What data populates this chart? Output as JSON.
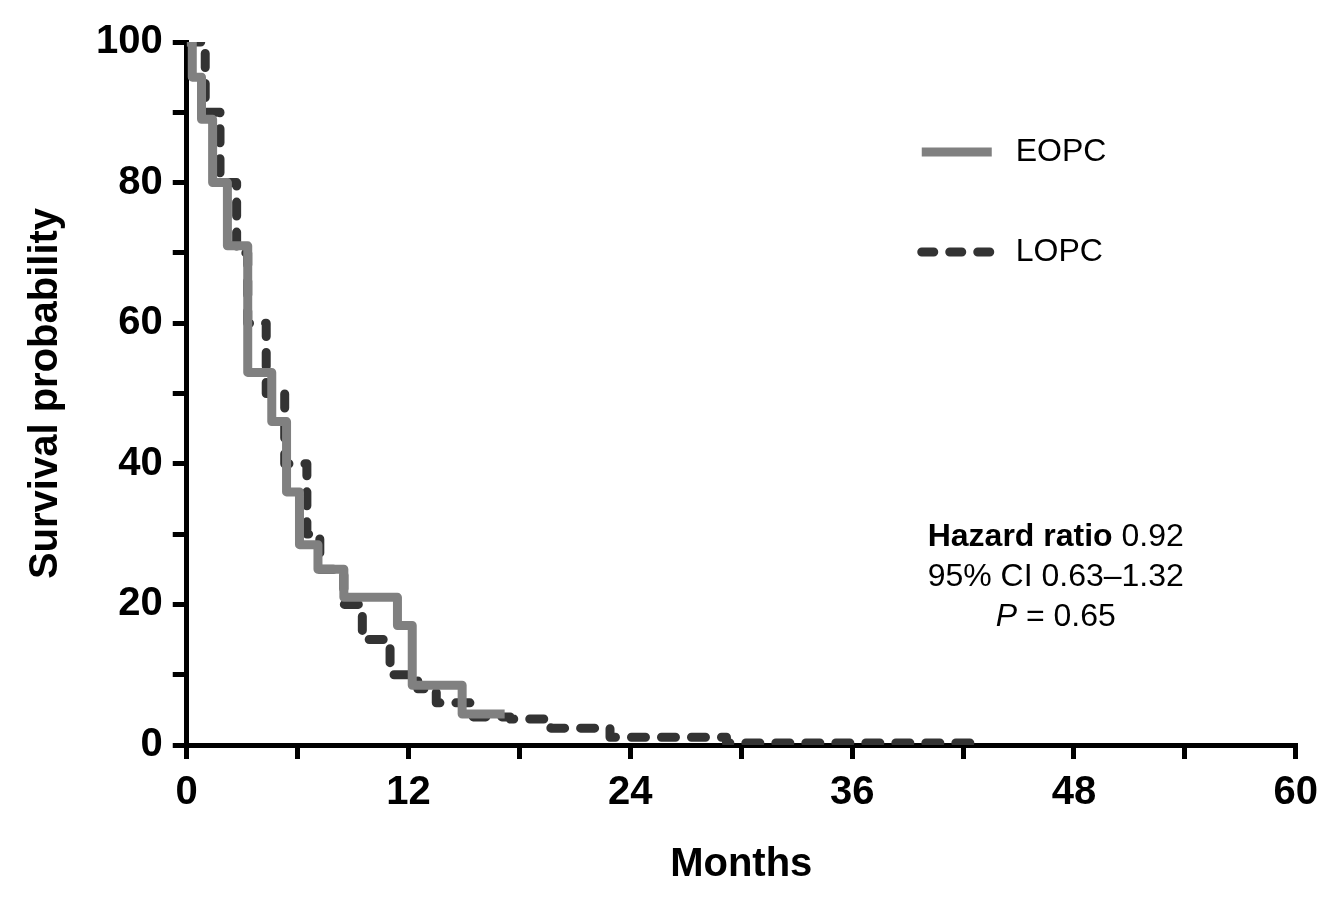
{
  "chart_data": {
    "type": "step",
    "xlabel": "Months",
    "ylabel": "Survival probability",
    "xlim": [
      0,
      60
    ],
    "xticks": [
      0,
      {
        "value": 6,
        "label": null
      },
      12,
      {
        "value": 18,
        "label": null
      },
      24,
      {
        "value": 30,
        "label": null
      },
      36,
      {
        "value": 42,
        "label": null
      },
      48,
      {
        "value": 54,
        "label": null
      },
      60
    ],
    "ylim": [
      0,
      100
    ],
    "yticks": [
      0,
      {
        "value": 10,
        "label": null
      },
      20,
      {
        "value": 30,
        "label": null
      },
      40,
      {
        "value": 50,
        "label": null
      },
      60,
      {
        "value": 70,
        "label": null
      },
      80,
      {
        "value": 90,
        "label": null
      },
      100
    ],
    "grid": false,
    "legend": "top right",
    "series": [
      {
        "name": "EOPC",
        "color": "#808080",
        "line_style": "solid",
        "x": [
          0,
          0.3,
          0.8,
          1.4,
          2.2,
          3.3,
          4.6,
          5.4,
          6.1,
          7.1,
          8.5,
          11.4,
          12.2,
          14.9,
          17.2
        ],
        "values": [
          100,
          95,
          89,
          80,
          71,
          53,
          46,
          36,
          28.5,
          25,
          21,
          17,
          8.5,
          4.4,
          4.4
        ]
      },
      {
        "name": "LOPC",
        "color": "#333333",
        "line_style": "dashed",
        "x": [
          0,
          1,
          1.8,
          2.7,
          3.3,
          4.3,
          5.3,
          6.5,
          7.2,
          8.5,
          9.5,
          11,
          12.5,
          13.5,
          15.5,
          17.5,
          19.7,
          22.9,
          29.2,
          43.1
        ],
        "values": [
          100,
          90,
          80,
          70,
          60,
          50,
          40,
          30,
          25,
          20,
          15,
          10,
          8,
          6,
          4,
          3.7,
          2.4,
          1.1,
          0.3,
          0.3
        ]
      }
    ],
    "annotations": [
      "Hazard ratio 0.92",
      "95% CI 0.63–1.32",
      "P = 0.65"
    ]
  }
}
